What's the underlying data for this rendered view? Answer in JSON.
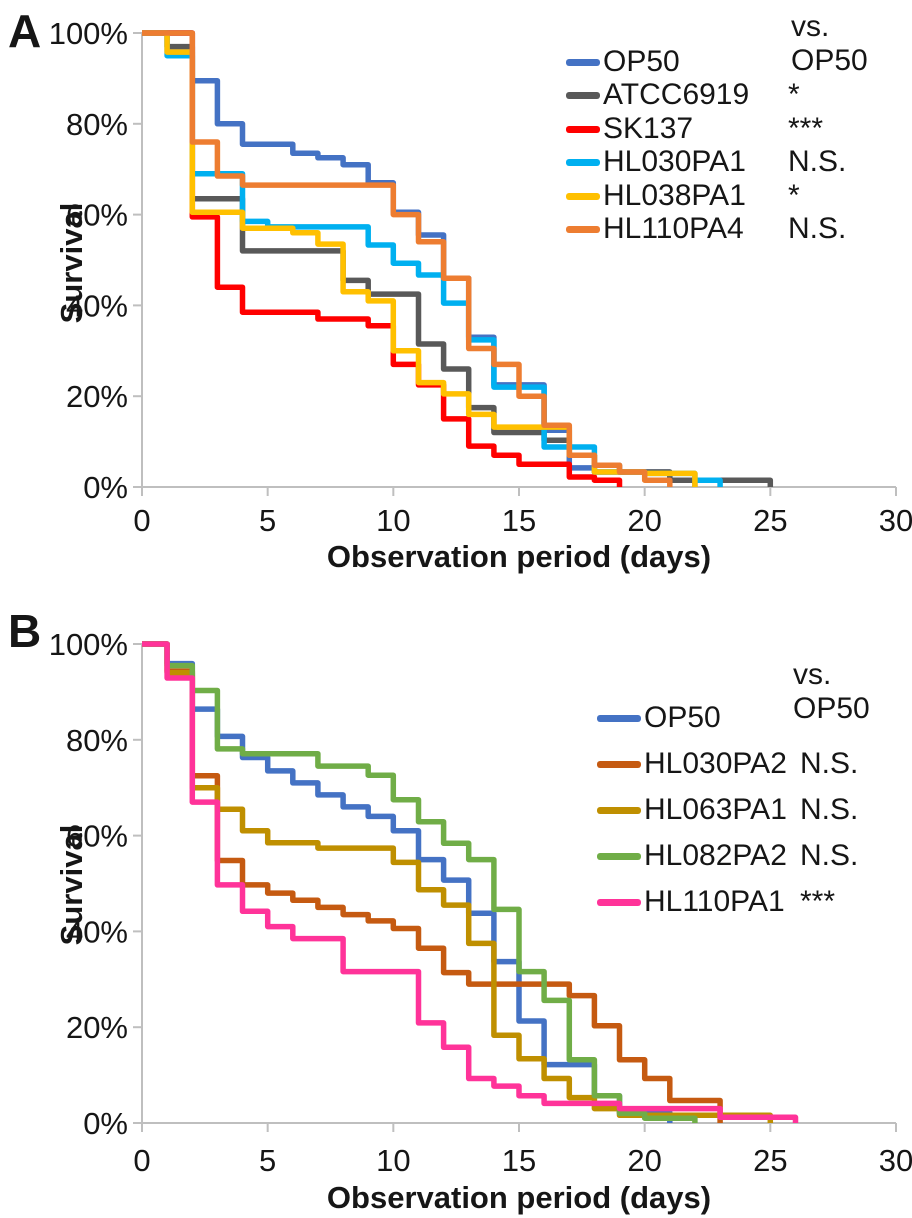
{
  "figure": {
    "description": "Two-panel Kaplan-Meier survival figure comparing C. elegans survival on different bacterial strains versus OP50 control"
  },
  "chart_data": [
    {
      "type": "line",
      "subtype": "kaplan-meier-step",
      "panel_label": "A",
      "legend_title": "vs. OP50",
      "xlabel": "Observation period (days)",
      "ylabel": "Survival",
      "xlim": [
        0,
        30
      ],
      "ylim": [
        0,
        100
      ],
      "grid": false,
      "legend_position": "upper right",
      "x_ticks": [
        {
          "label": "0",
          "v": 0
        },
        {
          "label": "5",
          "v": 5
        },
        {
          "label": "10",
          "v": 10
        },
        {
          "label": "15",
          "v": 15
        },
        {
          "label": "20",
          "v": 20
        },
        {
          "label": "25",
          "v": 25
        },
        {
          "label": "30",
          "v": 30
        }
      ],
      "y_ticks": [
        {
          "label": "100%",
          "v": 100
        },
        {
          "label": "80%",
          "v": 80
        },
        {
          "label": "60%",
          "v": 60
        },
        {
          "label": "40%",
          "v": 40
        },
        {
          "label": "20%",
          "v": 20
        },
        {
          "label": "0%",
          "v": 0
        }
      ],
      "series": [
        {
          "name": "OP50",
          "significance": "",
          "color": "#4472C4",
          "step_points": [
            [
              0,
              100
            ],
            [
              2,
              89.5
            ],
            [
              3,
              80
            ],
            [
              4,
              75.5
            ],
            [
              6,
              73.5
            ],
            [
              7,
              72.5
            ],
            [
              8,
              71
            ],
            [
              9,
              67
            ],
            [
              10,
              60.5
            ],
            [
              11,
              55.5
            ],
            [
              12,
              46
            ],
            [
              13,
              33
            ],
            [
              14,
              22.5
            ],
            [
              16,
              12.5
            ],
            [
              17,
              4.2
            ],
            [
              18,
              3.3
            ],
            [
              21,
              1.5
            ],
            [
              22,
              0
            ]
          ]
        },
        {
          "name": "ATCC6919",
          "significance": "*",
          "color": "#595959",
          "step_points": [
            [
              0,
              100
            ],
            [
              1,
              97
            ],
            [
              2,
              63.5
            ],
            [
              4,
              52
            ],
            [
              8,
              45.5
            ],
            [
              9,
              42.5
            ],
            [
              11,
              31.5
            ],
            [
              12,
              26
            ],
            [
              13,
              17.5
            ],
            [
              14,
              12
            ],
            [
              16,
              10.3
            ],
            [
              17,
              7
            ],
            [
              18,
              4.8
            ],
            [
              19,
              3.3
            ],
            [
              21,
              1.5
            ],
            [
              25,
              0
            ]
          ]
        },
        {
          "name": "SK137",
          "significance": "***",
          "color": "#FF0000",
          "step_points": [
            [
              0,
              100
            ],
            [
              2,
              59.5
            ],
            [
              3,
              44
            ],
            [
              4,
              38.5
            ],
            [
              7,
              37
            ],
            [
              9,
              35.5
            ],
            [
              10,
              27
            ],
            [
              11,
              22.5
            ],
            [
              12,
              15
            ],
            [
              13,
              9
            ],
            [
              14,
              7
            ],
            [
              15,
              5
            ],
            [
              17,
              2.2
            ],
            [
              18,
              1.5
            ],
            [
              19,
              0
            ]
          ]
        },
        {
          "name": "HL030PA1",
          "significance": "N.S.",
          "color": "#00B0F0",
          "step_points": [
            [
              0,
              100
            ],
            [
              1,
              95
            ],
            [
              2,
              69
            ],
            [
              4,
              58.5
            ],
            [
              5,
              57.3
            ],
            [
              9,
              53.3
            ],
            [
              10,
              49.3
            ],
            [
              11,
              46.7
            ],
            [
              12,
              40.5
            ],
            [
              13,
              32.4
            ],
            [
              14,
              22
            ],
            [
              16,
              8.8
            ],
            [
              18,
              3.3
            ],
            [
              20,
              3
            ],
            [
              22,
              1.5
            ],
            [
              23,
              0
            ]
          ]
        },
        {
          "name": "HL038PA1",
          "significance": "*",
          "color": "#FFC000",
          "step_points": [
            [
              0,
              100
            ],
            [
              1,
              95.8
            ],
            [
              2,
              60.5
            ],
            [
              4,
              57
            ],
            [
              6,
              56
            ],
            [
              7,
              53.5
            ],
            [
              8,
              43
            ],
            [
              9,
              41
            ],
            [
              10,
              30
            ],
            [
              11,
              23
            ],
            [
              12,
              20.5
            ],
            [
              13,
              16
            ],
            [
              14,
              13.2
            ],
            [
              17,
              7
            ],
            [
              18,
              3.3
            ],
            [
              20,
              3
            ],
            [
              22,
              0
            ]
          ]
        },
        {
          "name": "HL110PA4",
          "significance": "N.S.",
          "color": "#ED7D31",
          "step_points": [
            [
              0,
              100
            ],
            [
              2,
              76
            ],
            [
              3,
              68.5
            ],
            [
              4,
              66.5
            ],
            [
              10,
              60
            ],
            [
              11,
              54
            ],
            [
              12,
              46
            ],
            [
              13,
              30.5
            ],
            [
              14,
              27
            ],
            [
              15,
              20
            ],
            [
              16,
              13.6
            ],
            [
              17,
              7
            ],
            [
              18,
              4.8
            ],
            [
              19,
              3.3
            ],
            [
              20,
              1.5
            ],
            [
              21,
              0
            ]
          ]
        }
      ]
    },
    {
      "type": "line",
      "subtype": "kaplan-meier-step",
      "panel_label": "B",
      "legend_title": "vs. OP50",
      "xlabel": "Observation period (days)",
      "ylabel": "Survival",
      "xlim": [
        0,
        30
      ],
      "ylim": [
        0,
        100
      ],
      "grid": false,
      "legend_position": "upper right",
      "x_ticks": [
        {
          "label": "0",
          "v": 0
        },
        {
          "label": "5",
          "v": 5
        },
        {
          "label": "10",
          "v": 10
        },
        {
          "label": "15",
          "v": 15
        },
        {
          "label": "20",
          "v": 20
        },
        {
          "label": "25",
          "v": 25
        },
        {
          "label": "30",
          "v": 30
        }
      ],
      "y_ticks": [
        {
          "label": "100%",
          "v": 100
        },
        {
          "label": "80%",
          "v": 80
        },
        {
          "label": "60%",
          "v": 60
        },
        {
          "label": "40%",
          "v": 40
        },
        {
          "label": "20%",
          "v": 20
        },
        {
          "label": "0%",
          "v": 0
        }
      ],
      "series": [
        {
          "name": "OP50",
          "significance": "",
          "color": "#4472C4",
          "step_points": [
            [
              0,
              100
            ],
            [
              1,
              95.9
            ],
            [
              2,
              86.4
            ],
            [
              3,
              80.7
            ],
            [
              4,
              76.3
            ],
            [
              5,
              73.5
            ],
            [
              6,
              71
            ],
            [
              7,
              68.5
            ],
            [
              8,
              66
            ],
            [
              9,
              64
            ],
            [
              10,
              61
            ],
            [
              11,
              55
            ],
            [
              12,
              50.7
            ],
            [
              13,
              43.8
            ],
            [
              14,
              33.7
            ],
            [
              15,
              21.3
            ],
            [
              16,
              12.2
            ],
            [
              18,
              5.7
            ],
            [
              19,
              2.2
            ],
            [
              21,
              0
            ]
          ]
        },
        {
          "name": "HL030PA2",
          "significance": "N.S.",
          "color": "#C55A11",
          "step_points": [
            [
              0,
              100
            ],
            [
              1,
              94.3
            ],
            [
              2,
              72.5
            ],
            [
              3,
              54.8
            ],
            [
              4,
              49.7
            ],
            [
              5,
              48
            ],
            [
              6,
              46.5
            ],
            [
              7,
              45
            ],
            [
              8,
              43.5
            ],
            [
              9,
              42.2
            ],
            [
              10,
              40.6
            ],
            [
              11,
              36.5
            ],
            [
              12,
              31.4
            ],
            [
              13,
              29
            ],
            [
              17,
              26.6
            ],
            [
              18,
              20.3
            ],
            [
              19,
              13.2
            ],
            [
              20,
              9.3
            ],
            [
              21,
              4.7
            ],
            [
              23,
              0
            ]
          ]
        },
        {
          "name": "HL063PA1",
          "significance": "N.S.",
          "color": "#BF8F00",
          "step_points": [
            [
              0,
              100
            ],
            [
              1,
              94
            ],
            [
              2,
              70
            ],
            [
              3,
              65.5
            ],
            [
              4,
              61
            ],
            [
              5,
              58.5
            ],
            [
              7,
              57.4
            ],
            [
              10,
              54.4
            ],
            [
              11,
              48.7
            ],
            [
              12,
              45.5
            ],
            [
              13,
              37.5
            ],
            [
              14,
              18.3
            ],
            [
              15,
              13.4
            ],
            [
              16,
              9.3
            ],
            [
              17,
              5.3
            ],
            [
              18,
              3
            ],
            [
              19,
              1.6
            ],
            [
              25,
              0
            ]
          ]
        },
        {
          "name": "HL082PA2",
          "significance": "N.S.",
          "color": "#70AD47",
          "step_points": [
            [
              0,
              100
            ],
            [
              1,
              95.5
            ],
            [
              2,
              90.3
            ],
            [
              3,
              78.1
            ],
            [
              4,
              77.1
            ],
            [
              7,
              74.5
            ],
            [
              9,
              72.6
            ],
            [
              10,
              67.5
            ],
            [
              11,
              62.9
            ],
            [
              12,
              58.4
            ],
            [
              13,
              55
            ],
            [
              14,
              44.6
            ],
            [
              15,
              31.6
            ],
            [
              16,
              25.6
            ],
            [
              17,
              13.2
            ],
            [
              18,
              5.7
            ],
            [
              19,
              2
            ],
            [
              20,
              1
            ],
            [
              22,
              0
            ]
          ]
        },
        {
          "name": "HL110PA1",
          "significance": "***",
          "color": "#FF3399",
          "step_points": [
            [
              0,
              100
            ],
            [
              1,
              92.9
            ],
            [
              2,
              67
            ],
            [
              3,
              49.7
            ],
            [
              4,
              44.2
            ],
            [
              5,
              41
            ],
            [
              6,
              38.5
            ],
            [
              8,
              31.6
            ],
            [
              11,
              20.9
            ],
            [
              12,
              15.8
            ],
            [
              13,
              9.3
            ],
            [
              14,
              7.7
            ],
            [
              15,
              5.7
            ],
            [
              16,
              4.1
            ],
            [
              19,
              3
            ],
            [
              23,
              1.2
            ],
            [
              26,
              0
            ]
          ]
        }
      ]
    }
  ]
}
